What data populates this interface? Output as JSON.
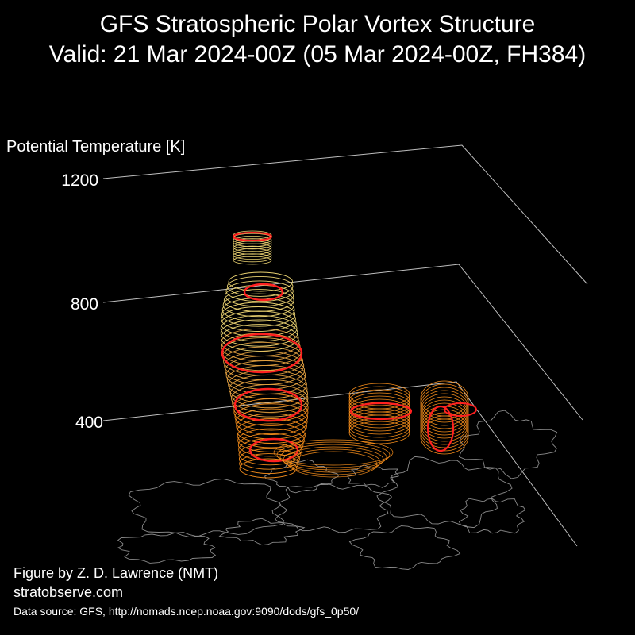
{
  "title_line1": "GFS Stratospheric Polar Vortex Structure",
  "title_line2": "Valid: 21 Mar 2024-00Z  (05 Mar 2024-00Z, FH384)",
  "credit_line1": "Figure by Z. D. Lawrence (NMT)",
  "credit_line2": "stratobserve.com",
  "data_source": "Data source: GFS, http://nomads.ncep.noaa.gov:9090/dods/gfs_0p50/",
  "colors": {
    "background": "#000000",
    "red_isosurface": "#ff2020",
    "orange_isosurface": "#f08a1a",
    "yellow_isosurface": "#e8d070",
    "coastline": "#8a8a8a",
    "axis_lines": "#bfbfbf"
  },
  "chart_data": {
    "type": "3d-isosurface",
    "zlabel": "Potential Temperature [K]",
    "zticks": [
      400,
      800,
      1200
    ],
    "zlim": [
      400,
      1200
    ],
    "grid": true
  }
}
